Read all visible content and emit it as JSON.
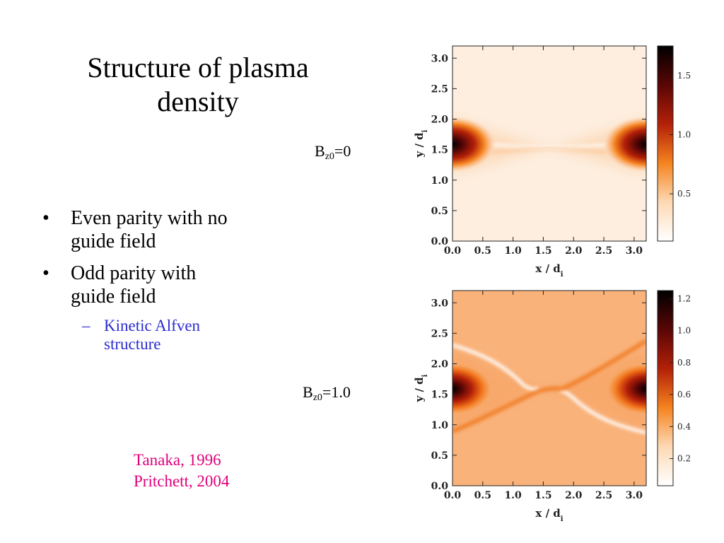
{
  "slide": {
    "title_line1": "Structure of plasma",
    "title_line2": "density",
    "bullets": [
      {
        "line1": "Even parity with no",
        "line2": "guide field"
      },
      {
        "line1": "Odd parity with",
        "line2": "guide field"
      }
    ],
    "sub_bullet": {
      "line1": "Kinetic Alfven",
      "line2": "structure"
    },
    "bullet_glyph": "•",
    "sub_glyph": "–",
    "label_top": {
      "base": "B",
      "subscript": "z0",
      "value": "=0"
    },
    "label_bottom": {
      "base": "B",
      "subscript": "z0",
      "value": "=1.0"
    },
    "references": [
      "Tanaka, 1996",
      "Pritchett, 2004"
    ],
    "colors": {
      "sub_bullet": "#2b2bd0",
      "references": "#e0007a"
    }
  },
  "chart_data": [
    {
      "type": "heatmap",
      "title": "",
      "xlabel": "x / d",
      "xlabel_sub": "i",
      "ylabel": "y / d",
      "ylabel_sub": "i",
      "xlim": [
        0,
        3.2
      ],
      "ylim": [
        0,
        3.2
      ],
      "x_ticks": [
        "0.0",
        "0.5",
        "1.0",
        "1.5",
        "2.0",
        "2.5",
        "3.0"
      ],
      "y_ticks": [
        "0.0",
        "0.5",
        "1.0",
        "1.5",
        "2.0",
        "2.5",
        "3.0"
      ],
      "colorbar_range": [
        0.1,
        1.75
      ],
      "colorbar_ticks": [
        "0.5",
        "1.0",
        "1.5"
      ],
      "colorbar_tick_values": [
        0.5,
        1.0,
        1.5
      ],
      "colormap": [
        "#ffffff",
        "#fdd9b4",
        "#f5831f",
        "#b32008",
        "#5a0606",
        "#000000"
      ]
    },
    {
      "type": "heatmap",
      "title": "",
      "xlabel": "x / d",
      "xlabel_sub": "i",
      "ylabel": "y / d",
      "ylabel_sub": "i",
      "xlim": [
        0,
        3.2
      ],
      "ylim": [
        0,
        3.2
      ],
      "x_ticks": [
        "0.0",
        "0.5",
        "1.0",
        "1.5",
        "2.0",
        "2.5",
        "3.0"
      ],
      "y_ticks": [
        "0.0",
        "0.5",
        "1.0",
        "1.5",
        "2.0",
        "2.5",
        "3.0"
      ],
      "colorbar_range": [
        0.03,
        1.25
      ],
      "colorbar_ticks": [
        "0.2",
        "0.4",
        "0.6",
        "0.8",
        "1.0",
        "1.2"
      ],
      "colorbar_tick_values": [
        0.2,
        0.4,
        0.6,
        0.8,
        1.0,
        1.2
      ],
      "colormap": [
        "#ffffff",
        "#fdd9b4",
        "#f5831f",
        "#b32008",
        "#5a0606",
        "#000000"
      ]
    }
  ]
}
